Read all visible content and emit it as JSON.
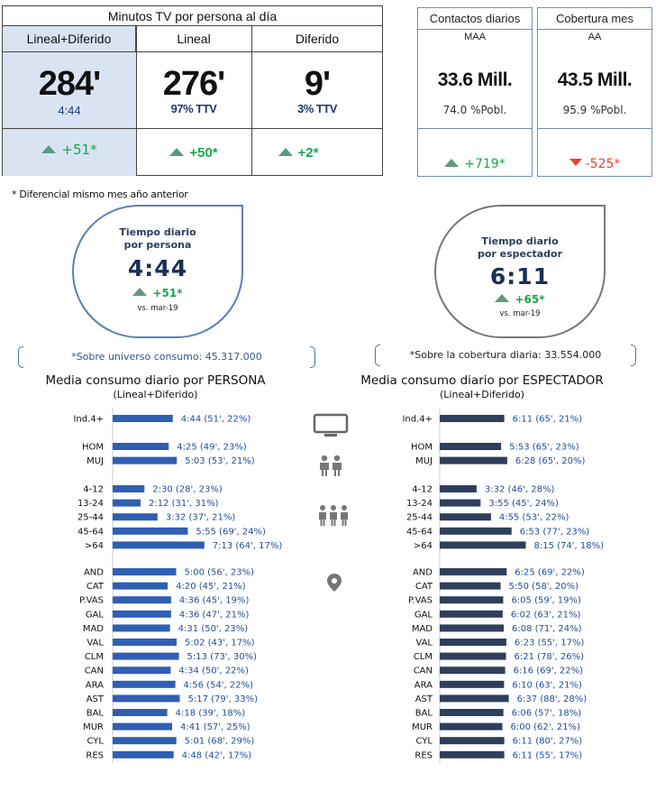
{
  "summary": {
    "title": "Minutos TV por persona al día",
    "columns": [
      {
        "header": "Lineal+Diferido",
        "value": "284'",
        "sub": "4:44",
        "delta": "+51*"
      },
      {
        "header": "Lineal",
        "value": "276'",
        "sub": "97% TTV",
        "delta": "+50*"
      },
      {
        "header": "Diferido",
        "value": "9'",
        "sub": "3% TTV",
        "delta": "+2*"
      }
    ]
  },
  "kpis": [
    {
      "title": "Contactos diarios",
      "sub": "MAA",
      "value": "33.6 Mill.",
      "pct": "74.0 %Pobl.",
      "delta": "+719*",
      "direction": "up"
    },
    {
      "title": "Cobertura mes",
      "sub": "AA",
      "value": "43.5 Mill.",
      "pct": "95.9 %Pobl.",
      "delta": "-525*",
      "direction": "down"
    }
  ],
  "footnote": "* Diferencial  mismo mes año anterior",
  "bubbles": {
    "left": {
      "title_line1": "Tiempo diario",
      "title_line2": "por persona",
      "value": "4:44",
      "delta": "+51*",
      "vs": "vs. mar-19"
    },
    "right": {
      "title_line1": "Tiempo diario",
      "title_line2": "por espectador",
      "value": "6:11",
      "delta": "+65*",
      "vs": "vs. mar-19"
    }
  },
  "universe_left": "*Sobre universo consumo: 45.317.000",
  "universe_right": "*Sobre la cobertura diaria: 33.554.000",
  "icons": [
    "tv-icon",
    "couple-icon",
    "family-icon",
    "location-pin-icon"
  ],
  "colors": {
    "bar_left": "#2f5fb3",
    "bar_right": "#2e3f5c",
    "up": "#18a84a",
    "down": "#e0452b"
  },
  "chart_data": [
    {
      "type": "bar",
      "orientation": "horizontal",
      "title": "Media consumo diario por PERSONA",
      "subtitle": "(Lineal+Diferido)",
      "unit": "minutes",
      "groups": [
        {
          "categories": [
            "Ind.4+"
          ],
          "values": [
            284
          ],
          "labels": [
            "4:44 (51', 22%)"
          ]
        },
        {
          "categories": [
            "HOM",
            "MUJ"
          ],
          "values": [
            265,
            303
          ],
          "labels": [
            "4:25 (49', 23%)",
            "5:03 (53', 21%)"
          ]
        },
        {
          "categories": [
            "4-12",
            "13-24",
            "25-44",
            "45-64",
            ">64"
          ],
          "values": [
            150,
            132,
            212,
            355,
            433
          ],
          "labels": [
            "2:30 (28', 23%)",
            "2:12 (31', 31%)",
            "3:32 (37', 21%)",
            "5:55 (69', 24%)",
            "7:13 (64', 17%)"
          ]
        },
        {
          "categories": [
            "AND",
            "CAT",
            "P.VAS",
            "GAL",
            "MAD",
            "VAL",
            "CLM",
            "CAN",
            "ARA",
            "AST",
            "BAL",
            "MUR",
            "CYL",
            "RES"
          ],
          "values": [
            300,
            260,
            276,
            276,
            271,
            302,
            313,
            274,
            296,
            317,
            258,
            281,
            301,
            288
          ],
          "labels": [
            "5:00 (56', 23%)",
            "4:20 (45', 21%)",
            "4:36 (45', 19%)",
            "4:36 (47', 21%)",
            "4:31 (50', 23%)",
            "5:02 (43', 17%)",
            "5:13 (73', 30%)",
            "4:34 (50', 22%)",
            "4:56 (54', 22%)",
            "5:17 (79', 33%)",
            "4:18 (39', 18%)",
            "4:41 (57', 25%)",
            "5:01 (68', 29%)",
            "4:48 (42', 17%)"
          ]
        }
      ]
    },
    {
      "type": "bar",
      "orientation": "horizontal",
      "title": "Media consumo diario por ESPECTADOR",
      "subtitle": "(Lineal+Diferido)",
      "unit": "minutes",
      "groups": [
        {
          "categories": [
            "Ind.4+"
          ],
          "values": [
            371
          ],
          "labels": [
            "6:11 (65', 21%)"
          ]
        },
        {
          "categories": [
            "HOM",
            "MUJ"
          ],
          "values": [
            353,
            388
          ],
          "labels": [
            "5:53 (65', 23%)",
            "6:28 (65', 20%)"
          ]
        },
        {
          "categories": [
            "4-12",
            "13-24",
            "25-44",
            "45-64",
            ">64"
          ],
          "values": [
            212,
            235,
            295,
            413,
            495
          ],
          "labels": [
            "3:32 (46', 28%)",
            "3:55 (45', 24%)",
            "4:55 (53', 22%)",
            "6:53 (77', 23%)",
            "8:15 (74', 18%)"
          ]
        },
        {
          "categories": [
            "AND",
            "CAT",
            "P.VAS",
            "GAL",
            "MAD",
            "VAL",
            "CLM",
            "CAN",
            "ARA",
            "AST",
            "BAL",
            "MUR",
            "CYL",
            "RES"
          ],
          "values": [
            385,
            350,
            365,
            362,
            368,
            383,
            381,
            376,
            370,
            397,
            366,
            360,
            371,
            371
          ],
          "labels": [
            "6:25 (69', 22%)",
            "5:50 (58', 20%)",
            "6:05 (59', 19%)",
            "6:02 (63', 21%)",
            "6:08 (71', 24%)",
            "6:23 (55', 17%)",
            "6:21 (78', 26%)",
            "6:16 (69', 22%)",
            "6:10 (63', 21%)",
            "6:37 (88', 28%)",
            "6:06 (57', 18%)",
            "6:00 (62', 21%)",
            "6:11 (80', 27%)",
            "6:11 (55', 17%)"
          ]
        }
      ]
    }
  ]
}
